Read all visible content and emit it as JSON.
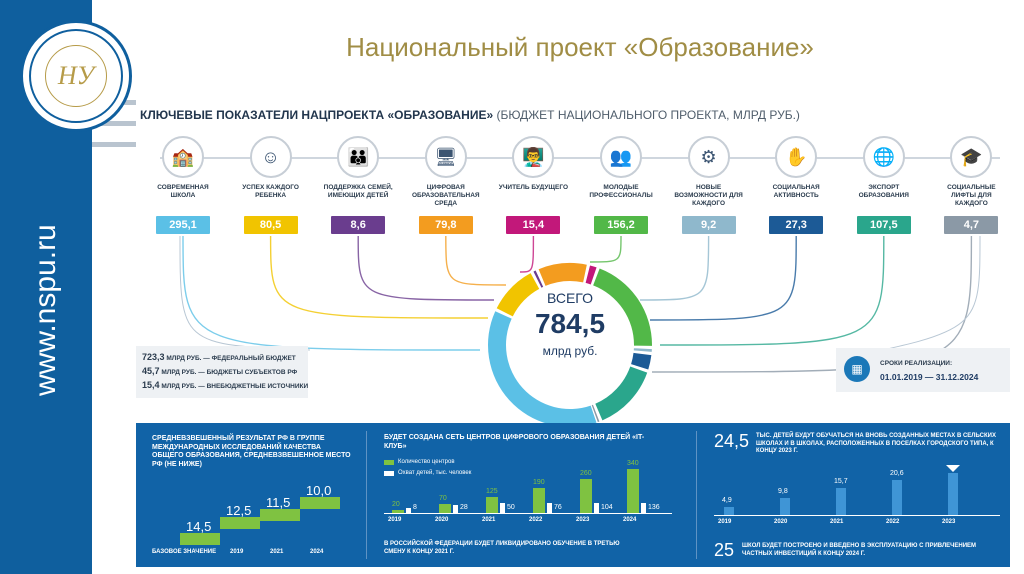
{
  "slide": {
    "title": "Национальный проект «Образование»",
    "site": "www.nspu.ru",
    "logo_text": "НУ"
  },
  "colors": {
    "sidebar": "#0f5f9e",
    "title_gold": "#a08d45",
    "green": "#7fc241",
    "bottom_panel": "#1163a7"
  },
  "header": {
    "title": "КЛЮЧЕВЫЕ ПОКАЗАТЕЛИ НАЦПРОЕКТА «ОБРАЗОВАНИЕ»",
    "subtitle": "(БЮДЖЕТ НАЦИОНАЛЬНОГО ПРОЕКТА, МЛРД РУБ.)"
  },
  "indicators": [
    {
      "label": "СОВРЕМЕННАЯ ШКОЛА",
      "value": "295,1",
      "color": "#5bc0e6",
      "icon": "school-icon",
      "glyph": "🏫"
    },
    {
      "label": "УСПЕХ КАЖДОГО РЕБЕНКА",
      "value": "80,5",
      "color": "#f1c400",
      "icon": "child-icon",
      "glyph": "☺"
    },
    {
      "label": "ПОДДЕРЖКА СЕМЕЙ, ИМЕЮЩИХ ДЕТЕЙ",
      "value": "8,6",
      "color": "#6a3d8e",
      "icon": "family-icon",
      "glyph": "👪"
    },
    {
      "label": "ЦИФРОВАЯ ОБРАЗОВАТЕЛЬНАЯ СРЕДА",
      "value": "79,8",
      "color": "#f39c1f",
      "icon": "monitor-icon",
      "glyph": "🖥"
    },
    {
      "label": "УЧИТЕЛЬ БУДУЩЕГО",
      "value": "15,4",
      "color": "#c2187a",
      "icon": "teacher-icon",
      "glyph": "👨‍🏫"
    },
    {
      "label": "МОЛОДЫЕ ПРОФЕССИОНАЛЫ",
      "value": "156,2",
      "color": "#52b848",
      "icon": "professionals-icon",
      "glyph": "👥"
    },
    {
      "label": "НОВЫЕ ВОЗМОЖНОСТИ ДЛЯ КАЖДОГО",
      "value": "9,2",
      "color": "#8fb8cc",
      "icon": "opportunity-icon",
      "glyph": "⚙"
    },
    {
      "label": "СОЦИАЛЬНАЯ АКТИВНОСТЬ",
      "value": "27,3",
      "color": "#1c5a96",
      "icon": "social-icon",
      "glyph": "✋"
    },
    {
      "label": "ЭКСПОРТ ОБРАЗОВАНИЯ",
      "value": "107,5",
      "color": "#2aa68c",
      "icon": "export-icon",
      "glyph": "🌐"
    },
    {
      "label": "СОЦИАЛЬНЫЕ ЛИФТЫ ДЛЯ КАЖДОГО",
      "value": "4,7",
      "color": "#8b99a6",
      "icon": "lift-icon",
      "glyph": "🎓"
    }
  ],
  "total": {
    "label": "ВСЕГО",
    "value": "784,5",
    "unit": "млрд руб."
  },
  "budget_sources": [
    {
      "value": "723,3",
      "text": "МЛРД РУБ. — ФЕДЕРАЛЬНЫЙ БЮДЖЕТ"
    },
    {
      "value": "45,7",
      "text": "МЛРД РУБ. — БЮДЖЕТЫ СУБЪЕКТОВ РФ"
    },
    {
      "value": "15,4",
      "text": "МЛРД РУБ. — ВНЕБЮДЖЕТНЫЕ ИСТОЧНИКИ"
    }
  ],
  "dates": {
    "label": "СРОКИ РЕАЛИЗАЦИИ:",
    "range": "01.01.2019 — 31.12.2024"
  },
  "panel1": {
    "text": "СРЕДНЕВЗВЕШЕННЫЙ РЕЗУЛЬТАТ РФ В ГРУППЕ МЕЖДУНАРОДНЫХ ИССЛЕДОВАНИЙ КАЧЕСТВА ОБЩЕГО ОБРАЗОВАНИЯ, СРЕДНЕВЗВЕШЕННОЕ МЕСТО РФ (НЕ НИЖЕ)",
    "steps": [
      {
        "label": "БАЗОВОЕ ЗНАЧЕНИЕ",
        "value": "14,5"
      },
      {
        "label": "2019",
        "value": "12,5"
      },
      {
        "label": "2021",
        "value": "11,5"
      },
      {
        "label": "2024",
        "value": "10,0"
      }
    ]
  },
  "panel2": {
    "title": "БУДЕТ СОЗДАНА СЕТЬ ЦЕНТРОВ ЦИФРОВОГО ОБРАЗОВАНИЯ ДЕТЕЙ «IT-КЛУБ»",
    "legend_centers": "Количество центров",
    "legend_children": "Охват детей, тыс. человек",
    "years": [
      "2019",
      "2020",
      "2021",
      "2022",
      "2023",
      "2024"
    ],
    "centers": [
      20,
      70,
      125,
      190,
      260,
      340
    ],
    "children": [
      8,
      28,
      50,
      76,
      104,
      136
    ],
    "note": "В РОССИЙСКОЙ ФЕДЕРАЦИИ БУДЕТ ЛИКВИДИРОВАНО ОБУЧЕНИЕ В ТРЕТЬЮ СМЕНУ К КОНЦУ 2021 Г."
  },
  "panel3": {
    "big": "24,5",
    "text": "ТЫС. ДЕТЕЙ БУДУТ ОБУЧАТЬСЯ НА ВНОВЬ СОЗДАННЫХ МЕСТАХ В СЕЛЬСКИХ ШКОЛАХ И В ШКОЛАХ, РАСПОЛОЖЕННЫХ В ПОСЕЛКАХ ГОРОДСКОГО ТИПА, К КОНЦУ 2023 Г.",
    "years": [
      "2019",
      "2020",
      "2021",
      "2022",
      "2023"
    ],
    "values": [
      4.9,
      9.8,
      15.7,
      20.6,
      24.5
    ],
    "labels": [
      "4,9",
      "9,8",
      "15,7",
      "20,6",
      ""
    ],
    "big2": "25",
    "text2": "ШКОЛ БУДЕТ ПОСТРОЕНО И ВВЕДЕНО В ЭКСПЛУАТАЦИЮ С ПРИВЛЕЧЕНИЕМ ЧАСТНЫХ ИНВЕСТИЦИЙ К КОНЦУ 2024 Г."
  }
}
